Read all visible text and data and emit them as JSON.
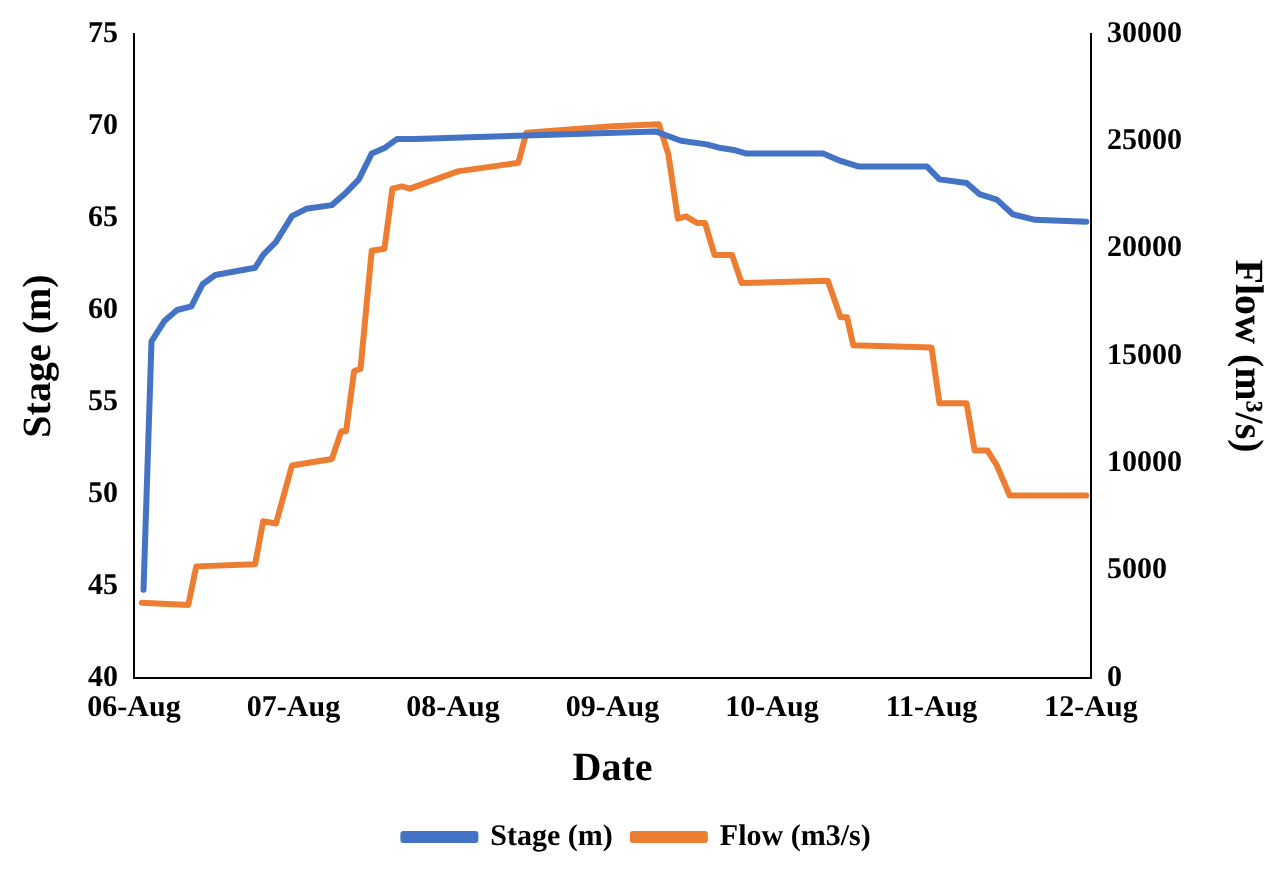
{
  "chart_data": {
    "type": "line",
    "xlabel": "Date",
    "ylabel": "Stage (m)",
    "y2label": "Flow (m³/s)",
    "xlim": [
      "--08-06",
      "--08-12"
    ],
    "xticks": [
      {
        "value": "--08-06",
        "label": "06-Aug"
      },
      {
        "value": "--08-07",
        "label": "07-Aug"
      },
      {
        "value": "--08-08",
        "label": "08-Aug"
      },
      {
        "value": "--08-09",
        "label": "09-Aug"
      },
      {
        "value": "--08-10",
        "label": "10-Aug"
      },
      {
        "value": "--08-11",
        "label": "11-Aug"
      },
      {
        "value": "--08-12",
        "label": "12-Aug"
      }
    ],
    "ylim": [
      40,
      75
    ],
    "yticks": [
      40,
      45,
      50,
      55,
      60,
      65,
      70,
      75
    ],
    "y2lim": [
      0,
      30000
    ],
    "y2ticks": [
      0,
      5000,
      10000,
      15000,
      20000,
      25000,
      30000
    ],
    "grid": false,
    "legend": "bottom",
    "marker": "none",
    "line_style": "solid",
    "series": [
      {
        "name": "Stage (m)",
        "color": "#4472c4",
        "x": [
          "--08-06T01:26",
          "--08-06T02:38",
          "--08-06T04:34",
          "--08-06T06:29",
          "--08-06T08:38",
          "--08-06T10:19",
          "--08-06T12:14",
          "--08-06T18:14",
          "--08-06T19:26",
          "--08-06T21:22",
          "--08-06T23:46",
          "--08-07T01:55",
          "--08-07T05:46",
          "--08-07T07:41",
          "--08-07T09:50",
          "--08-07T11:46",
          "--08-07T13:41",
          "--08-07T15:36",
          "--08-07T18:14",
          "--08-08T12:14",
          "--08-09T06:29",
          "--08-09T10:19",
          "--08-09T14:10",
          "--08-09T16:19",
          "--08-09T18:14",
          "--08-09T20:10",
          "--08-10T07:41",
          "--08-10T10:19",
          "--08-10T12:58",
          "--08-10T23:17",
          "--08-11T01:12",
          "--08-11T05:17",
          "--08-11T07:12",
          "--08-11T09:50",
          "--08-11T12:14",
          "--08-11T15:36",
          "--08-11T23:17"
        ],
        "values": [
          44.8,
          58.3,
          59.4,
          60.0,
          60.2,
          61.4,
          61.9,
          62.3,
          63.0,
          63.7,
          65.1,
          65.5,
          65.7,
          66.3,
          67.1,
          68.5,
          68.8,
          69.3,
          69.3,
          69.5,
          69.7,
          69.2,
          69.0,
          68.8,
          68.7,
          68.5,
          68.5,
          68.1,
          67.8,
          67.8,
          67.1,
          66.9,
          66.3,
          66.0,
          65.2,
          64.9,
          64.8
        ]
      },
      {
        "name": "Flow (m3/s)",
        "color": "#ed7d31",
        "axis": "y2",
        "x": [
          "--08-06T01:12",
          "--08-06T08:10",
          "--08-06T09:22",
          "--08-06T18:14",
          "--08-06T19:26",
          "--08-06T21:22",
          "--08-06T23:46",
          "--08-07T05:46",
          "--08-07T07:12",
          "--08-07T07:55",
          "--08-07T09:07",
          "--08-07T10:05",
          "--08-07T11:46",
          "--08-07T13:41",
          "--08-07T14:53",
          "--08-07T16:19",
          "--08-07T17:31",
          "--08-08T00:43",
          "--08-08T09:50",
          "--08-08T11:02",
          "--08-09T00:00",
          "--08-09T06:58",
          "--08-09T08:24",
          "--08-09T09:50",
          "--08-09T11:02",
          "--08-09T12:43",
          "--08-09T13:55",
          "--08-09T15:22",
          "--08-09T18:00",
          "--08-09T19:26",
          "--08-10T08:24",
          "--08-10T10:19",
          "--08-10T11:17",
          "--08-10T12:14",
          "--08-11T00:00",
          "--08-11T01:12",
          "--08-11T05:17",
          "--08-11T06:29",
          "--08-11T08:24",
          "--08-11T09:50",
          "--08-11T11:46",
          "--08-11T23:17"
        ],
        "values": [
          3500,
          3400,
          5200,
          5300,
          7300,
          7200,
          9900,
          10200,
          11500,
          11500,
          14300,
          14400,
          19900,
          20000,
          22800,
          22900,
          22800,
          23600,
          24000,
          25400,
          25700,
          25800,
          24400,
          21400,
          21500,
          21200,
          21200,
          19700,
          19700,
          18400,
          18500,
          16800,
          16800,
          15500,
          15400,
          12800,
          12800,
          10600,
          10600,
          9900,
          8500,
          8500
        ]
      }
    ]
  }
}
